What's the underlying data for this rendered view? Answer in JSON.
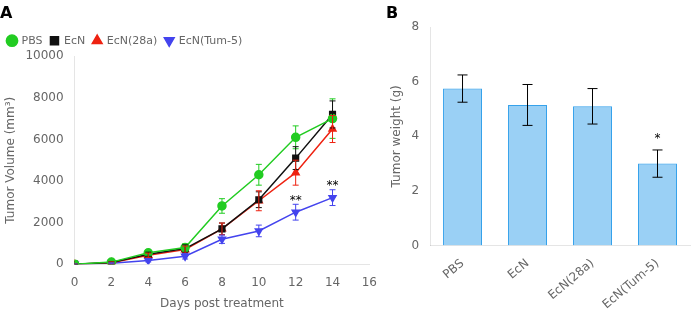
{
  "chart_data": [
    {
      "type": "line",
      "title": "A",
      "x": [
        0,
        2,
        4,
        6,
        8,
        10,
        12,
        14
      ],
      "series": [
        {
          "name": "PBS",
          "color": "#22cc22",
          "marker": "circle",
          "values": [
            0,
            100,
            550,
            800,
            2800,
            4300,
            6100,
            7000
          ],
          "errors": [
            0,
            40,
            120,
            180,
            350,
            500,
            550,
            950
          ]
        },
        {
          "name": "EcN",
          "color": "#111111",
          "marker": "square",
          "values": [
            0,
            80,
            480,
            750,
            1700,
            3100,
            5100,
            7200
          ],
          "errors": [
            0,
            40,
            100,
            180,
            280,
            380,
            550,
            650
          ]
        },
        {
          "name": "EcN(28a)",
          "color": "#ee2211",
          "marker": "triangle-up",
          "values": [
            0,
            70,
            430,
            700,
            1700,
            3050,
            4400,
            6500
          ],
          "errors": [
            0,
            40,
            100,
            170,
            280,
            480,
            600,
            650
          ]
        },
        {
          "name": "EcN(Tum-5)",
          "color": "#4444ee",
          "marker": "triangle-down",
          "values": [
            0,
            40,
            180,
            380,
            1200,
            1600,
            2500,
            3200
          ],
          "errors": [
            0,
            25,
            70,
            130,
            200,
            280,
            380,
            380
          ]
        }
      ],
      "xlabel": "Days post treatment",
      "ylabel": "Tumor Volume (mm³)",
      "xlim": [
        0,
        16
      ],
      "ylim": [
        0,
        10000
      ],
      "xticks": [
        0,
        2,
        4,
        6,
        8,
        10,
        12,
        14,
        16
      ],
      "yticks": [
        0,
        2000,
        4000,
        6000,
        8000,
        10000
      ],
      "grid": false,
      "legend": "upper left",
      "annotations": [
        {
          "text": "**",
          "x": 12,
          "y": 2750
        },
        {
          "text": "**",
          "x": 14,
          "y": 3480
        }
      ]
    },
    {
      "type": "bar",
      "title": "B",
      "categories": [
        "PBS",
        "EcN",
        "EcN(28a)",
        "EcN(Tum-5)"
      ],
      "values": [
        5.75,
        5.15,
        5.1,
        3.0
      ],
      "errors": [
        0.5,
        0.75,
        0.65,
        0.5
      ],
      "ylabel": "Tumor weight (g)",
      "ylim": [
        0,
        8
      ],
      "yticks": [
        0,
        2,
        4,
        6,
        8
      ],
      "grid": false,
      "annotations": [
        {
          "text": "*",
          "x": "EcN(Tum-5)",
          "y": 3.68
        }
      ]
    }
  ]
}
